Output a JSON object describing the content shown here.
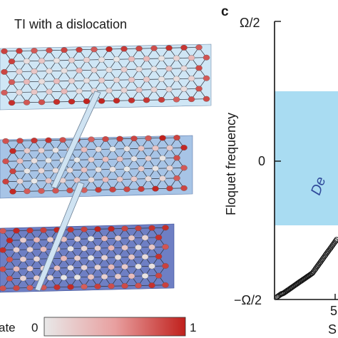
{
  "panel_b": {
    "title": "TI with a dislocation",
    "colorbar": {
      "label_fragment": "ate",
      "min_label": "0",
      "max_label": "1",
      "colors": [
        "#e8e8e8",
        "#e8a0a0",
        "#c0201c"
      ]
    },
    "layer_colors": [
      "#cfe6f5",
      "#a7c4e6",
      "#6e7fc4"
    ]
  },
  "panel_c": {
    "panel_letter": "c",
    "ylabel": "Floquet frequency",
    "ytick_top": "Ω/2",
    "ytick_mid": "0",
    "ytick_bottom": "−Ω/2",
    "xtick_fragment": "5",
    "xlabel_fragment": "S",
    "band_text_fragment": "De",
    "band_color": "#a9dcf2"
  },
  "chart_data": {
    "type": "scatter",
    "title": "",
    "xlabel": "S",
    "ylabel": "Floquet frequency",
    "ylim": [
      "−Ω/2",
      "Ω/2"
    ],
    "y_units": "fraction of Ω/2",
    "shaded_band": {
      "y_from": -0.47,
      "y_to": 0.48
    },
    "series": [
      {
        "marker": "open-circle",
        "x_index": [
          0,
          1,
          2,
          3,
          4,
          5,
          6,
          7,
          8,
          9,
          10,
          11,
          12,
          13,
          14,
          15,
          16,
          17,
          18,
          19,
          20,
          21,
          22,
          23,
          24,
          25,
          26,
          27,
          28,
          29,
          30,
          31,
          32,
          33,
          34,
          35,
          36,
          37,
          38,
          39,
          40,
          41,
          42,
          43,
          44,
          45,
          46,
          47,
          48,
          49,
          50,
          51,
          52,
          53,
          54,
          55,
          56,
          57,
          58,
          59
        ],
        "y": [
          -0.98,
          -0.975,
          -0.97,
          -0.965,
          -0.96,
          -0.958,
          -0.955,
          -0.95,
          -0.945,
          -0.94,
          -0.935,
          -0.93,
          -0.925,
          -0.92,
          -0.915,
          -0.91,
          -0.905,
          -0.9,
          -0.895,
          -0.89,
          -0.885,
          -0.88,
          -0.875,
          -0.87,
          -0.865,
          -0.86,
          -0.855,
          -0.85,
          -0.845,
          -0.84,
          -0.835,
          -0.83,
          -0.825,
          -0.82,
          -0.815,
          -0.81,
          -0.8,
          -0.79,
          -0.78,
          -0.77,
          -0.76,
          -0.75,
          -0.74,
          -0.73,
          -0.72,
          -0.71,
          -0.7,
          -0.69,
          -0.68,
          -0.67,
          -0.66,
          -0.65,
          -0.64,
          -0.63,
          -0.62,
          -0.61,
          -0.6,
          -0.59,
          -0.58,
          -0.57
        ]
      }
    ]
  }
}
